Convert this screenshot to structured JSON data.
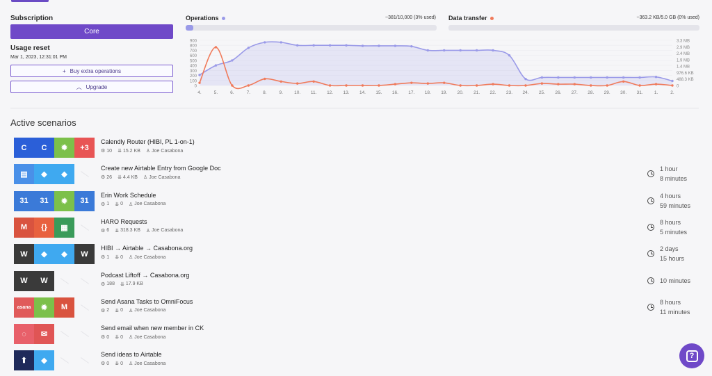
{
  "subscription": {
    "label": "Subscription",
    "plan": "Core",
    "reset_label": "Usage reset",
    "reset_date": "Mar 1, 2023, 12:31:01 PM",
    "buy_label": "Buy extra operations",
    "upgrade_label": "Upgrade"
  },
  "operations": {
    "title": "Operations",
    "usage": "~381/10,000 (3% used)",
    "percent": 3,
    "color": "#9a9ae8"
  },
  "data_transfer": {
    "title": "Data transfer",
    "usage": "~363.2 KB/5.0 GB (0% used)",
    "percent": 0,
    "color": "#f07a5a"
  },
  "chart_data": {
    "type": "line",
    "x": [
      "4.",
      "5.",
      "6.",
      "7.",
      "8.",
      "9.",
      "10.",
      "11.",
      "12.",
      "13.",
      "14.",
      "15.",
      "16.",
      "17.",
      "18.",
      "19.",
      "20.",
      "21.",
      "22.",
      "23.",
      "24.",
      "25.",
      "26.",
      "27.",
      "28.",
      "29.",
      "30.",
      "31.",
      "1.",
      "2."
    ],
    "left_ticks": [
      "900",
      "800",
      "700",
      "600",
      "500",
      "400",
      "300",
      "200",
      "100",
      "0"
    ],
    "right_ticks": [
      "3.3 MB",
      "2.9 MB",
      "2.4 MB",
      "1.9 MB",
      "1.4 MB",
      "976.6 KB",
      "488.3 KB",
      "0"
    ],
    "ylim_left": [
      0,
      900
    ],
    "ylim_right_kb": [
      0,
      3400
    ],
    "series": [
      {
        "name": "Operations",
        "color": "#9a9ae8",
        "axis": "left",
        "area": true,
        "values": [
          210,
          400,
          500,
          750,
          860,
          860,
          800,
          800,
          800,
          800,
          790,
          790,
          790,
          780,
          700,
          700,
          700,
          700,
          700,
          600,
          130,
          160,
          160,
          160,
          160,
          160,
          160,
          160,
          170,
          90
        ]
      },
      {
        "name": "Data transfer",
        "color": "#f07a5a",
        "axis": "right",
        "area": false,
        "values": [
          200,
          2880,
          0,
          0,
          500,
          300,
          150,
          300,
          0,
          0,
          0,
          0,
          100,
          200,
          150,
          200,
          0,
          0,
          100,
          0,
          0,
          150,
          100,
          100,
          0,
          0,
          300,
          0,
          100,
          0
        ]
      }
    ]
  },
  "section_title": "Active scenarios",
  "scenarios": [
    {
      "name": "Calendly Router (HIBI, PL 1-on-1)",
      "ops": "10",
      "data": "15.2 KB",
      "owner": "Joe Casabona",
      "sched1": "",
      "sched2": "",
      "apps": [
        {
          "icon": "calendly-icon",
          "color": "#2b5fd8",
          "glyph": "C"
        },
        {
          "icon": "calendly-icon",
          "color": "#2b5fd8",
          "glyph": "C"
        },
        {
          "icon": "gear-icon",
          "color": "#7cc04a",
          "glyph": "✹"
        },
        {
          "icon": "more-apps-badge",
          "color": "#e85555",
          "glyph": "+3"
        }
      ]
    },
    {
      "name": "Create new Airtable Entry from Google Doc",
      "ops": "26",
      "data": "4.4 KB",
      "owner": "Joe Casabona",
      "sched1": "1 hour",
      "sched2": "8 minutes",
      "apps": [
        {
          "icon": "google-docs-icon",
          "color": "#4a90e8",
          "glyph": "▤"
        },
        {
          "icon": "airtable-icon",
          "color": "#3fa9f0",
          "glyph": "◆"
        },
        {
          "icon": "airtable-icon",
          "color": "#3fa9f0",
          "glyph": "◆"
        }
      ]
    },
    {
      "name": "Erin Work Schedule",
      "ops": "1",
      "data": "0",
      "owner": "Joe Casabona",
      "sched1": "4 hours",
      "sched2": "59 minutes",
      "apps": [
        {
          "icon": "google-calendar-icon",
          "color": "#3b7ad8",
          "glyph": "31"
        },
        {
          "icon": "google-calendar-icon",
          "color": "#3b7ad8",
          "glyph": "31"
        },
        {
          "icon": "gear-icon",
          "color": "#7cc04a",
          "glyph": "✹"
        },
        {
          "icon": "google-calendar-icon",
          "color": "#3b7ad8",
          "glyph": "31"
        }
      ]
    },
    {
      "name": "HARO Requests",
      "ops": "6",
      "data": "318.3 KB",
      "owner": "Joe Casabona",
      "sched1": "8 hours",
      "sched2": "5 minutes",
      "apps": [
        {
          "icon": "gmail-icon",
          "color": "#d9533f",
          "glyph": "M"
        },
        {
          "icon": "json-icon",
          "color": "#e8613f",
          "glyph": "{}"
        },
        {
          "icon": "google-sheets-icon",
          "color": "#3a9b5a",
          "glyph": "▦"
        }
      ]
    },
    {
      "name": "HIBI → Airtable → Casabona.org",
      "ops": "1",
      "data": "0",
      "owner": "Joe Casabona",
      "sched1": "2 days",
      "sched2": "15 hours",
      "apps": [
        {
          "icon": "wordpress-icon",
          "color": "#3a3a3a",
          "glyph": "W"
        },
        {
          "icon": "airtable-icon",
          "color": "#3fa9f0",
          "glyph": "◆"
        },
        {
          "icon": "airtable-icon",
          "color": "#3fa9f0",
          "glyph": "◆"
        },
        {
          "icon": "wordpress-icon",
          "color": "#3a3a3a",
          "glyph": "W"
        }
      ]
    },
    {
      "name": "Podcast Liftoff → Casabona.org",
      "ops": "188",
      "data": "17.9 KB",
      "owner": "",
      "sched1": "10 minutes",
      "sched2": "",
      "apps": [
        {
          "icon": "wordpress-icon",
          "color": "#3a3a3a",
          "glyph": "W"
        },
        {
          "icon": "wordpress-icon",
          "color": "#3a3a3a",
          "glyph": "W"
        }
      ]
    },
    {
      "name": "Send Asana Tasks to OmniFocus",
      "ops": "2",
      "data": "0",
      "owner": "Joe Casabona",
      "sched1": "8 hours",
      "sched2": "11 minutes",
      "apps": [
        {
          "icon": "asana-icon",
          "color": "#e05a5a",
          "glyph": "asana"
        },
        {
          "icon": "gear-icon",
          "color": "#7cc04a",
          "glyph": "✹"
        },
        {
          "icon": "gmail-icon",
          "color": "#d9533f",
          "glyph": "M"
        }
      ]
    },
    {
      "name": "Send email when new member in CK",
      "ops": "0",
      "data": "0",
      "owner": "Joe Casabona",
      "sched1": "",
      "sched2": "",
      "apps": [
        {
          "icon": "convertkit-icon",
          "color": "#e8606a",
          "glyph": "◌"
        },
        {
          "icon": "email-icon",
          "color": "#e05555",
          "glyph": "✉"
        }
      ]
    },
    {
      "name": "Send ideas to Airtable",
      "ops": "0",
      "data": "0",
      "owner": "Joe Casabona",
      "sched1": "",
      "sched2": "",
      "apps": [
        {
          "icon": "ideas-app-icon",
          "color": "#1f2a5a",
          "glyph": "⬆"
        },
        {
          "icon": "airtable-icon",
          "color": "#3fa9f0",
          "glyph": "◆"
        }
      ]
    }
  ]
}
